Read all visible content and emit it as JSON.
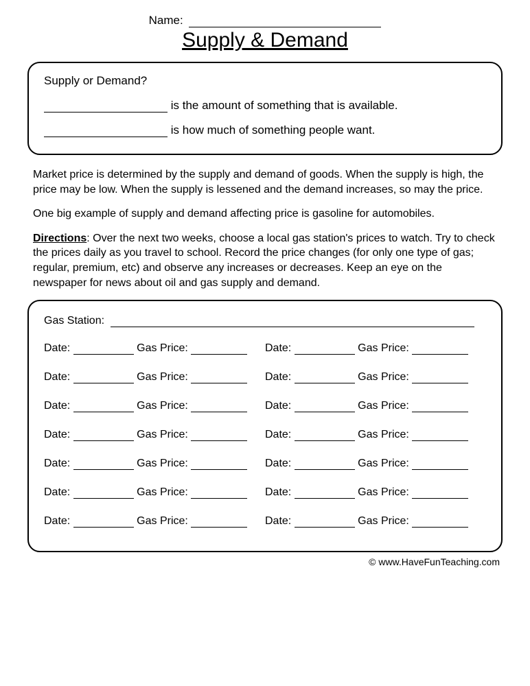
{
  "header": {
    "name_label": "Name:",
    "title": "Supply & Demand"
  },
  "definition_box": {
    "question": "Supply  or Demand?",
    "line1_suffix": "is the amount of something that is available.",
    "line2_suffix": "is how much of something people want."
  },
  "paragraphs": {
    "p1": "Market price is determined by the supply and demand of goods.  When the supply is high, the price may be low.  When the supply is lessened and the demand increases, so may the price.",
    "p2": "One big example of supply and demand affecting price is gasoline for automobiles.",
    "directions_label": "Directions",
    "directions_text": ":  Over the next two weeks, choose a local gas station's prices to watch.  Try to check the prices daily as you travel to school.  Record the price changes (for only one type of gas; regular, premium, etc) and observe any increases or decreases.  Keep an eye on the newspaper for news about oil and gas supply and demand."
  },
  "record_box": {
    "station_label": "Gas Station:",
    "date_label": "Date:",
    "price_label": "Gas Price:",
    "row_count": 14
  },
  "footer": {
    "text": "© www.HaveFunTeaching.com"
  }
}
